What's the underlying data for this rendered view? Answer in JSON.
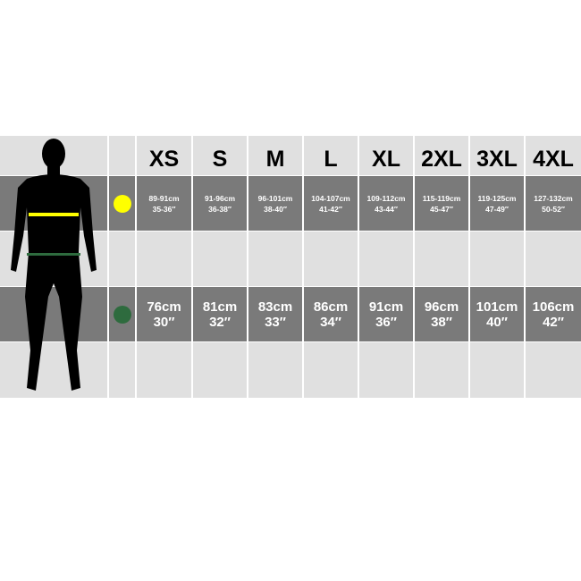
{
  "sizes": [
    "XS",
    "S",
    "M",
    "L",
    "XL",
    "2XL",
    "3XL",
    "4XL"
  ],
  "chest": {
    "marker_color": "#ffff00",
    "cm": [
      "89-91cm",
      "91-96cm",
      "96-101cm",
      "104-107cm",
      "109-112cm",
      "115-119cm",
      "119-125cm",
      "127-132cm"
    ],
    "inch": [
      "35-36″",
      "36-38″",
      "38-40″",
      "41-42″",
      "43-44″",
      "45-47″",
      "47-49″",
      "50-52″"
    ]
  },
  "waist": {
    "marker_color": "#2e6b3e",
    "cm": [
      "76cm",
      "81cm",
      "83cm",
      "86cm",
      "91cm",
      "96cm",
      "101cm",
      "106cm"
    ],
    "inch": [
      "30″",
      "32″",
      "33″",
      "34″",
      "36″",
      "38″",
      "40″",
      "42″"
    ]
  },
  "colors": {
    "light": "#e0e0e0",
    "dark": "#7a7a7a",
    "silhouette": "#000000"
  }
}
